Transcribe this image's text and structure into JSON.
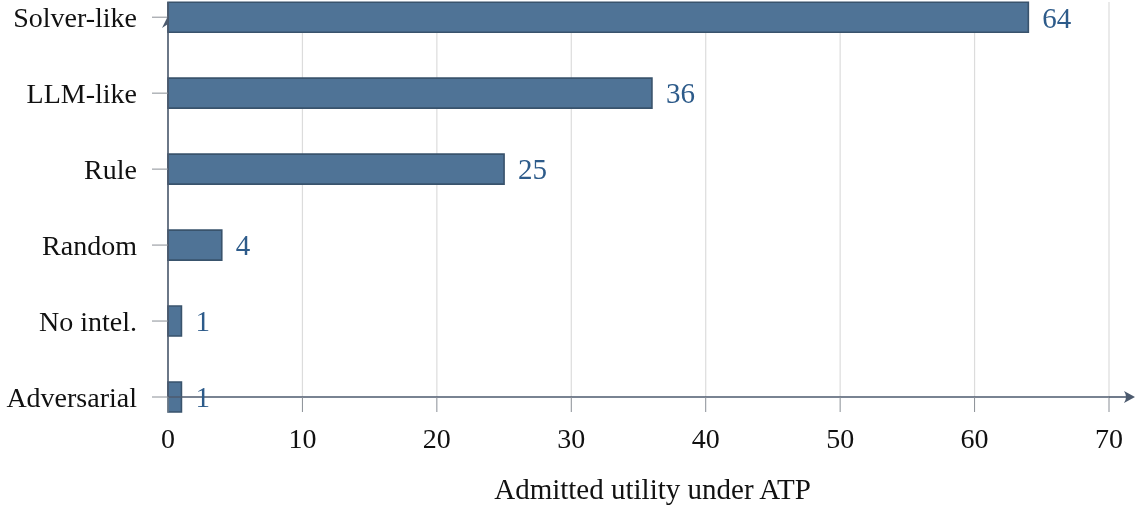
{
  "chart_data": {
    "type": "bar",
    "orientation": "horizontal",
    "categories": [
      "Solver-like",
      "LLM-like",
      "Rule",
      "Random",
      "No intel.",
      "Adversarial"
    ],
    "values": [
      64,
      36,
      25,
      4,
      1,
      1
    ],
    "color": "#4f7396",
    "xlabel": "Admitted utility under ATP",
    "xlim": [
      0,
      70
    ],
    "xticks": [
      0,
      10,
      20,
      30,
      40,
      50,
      60,
      70
    ],
    "grid": "x",
    "data_labels": true
  }
}
